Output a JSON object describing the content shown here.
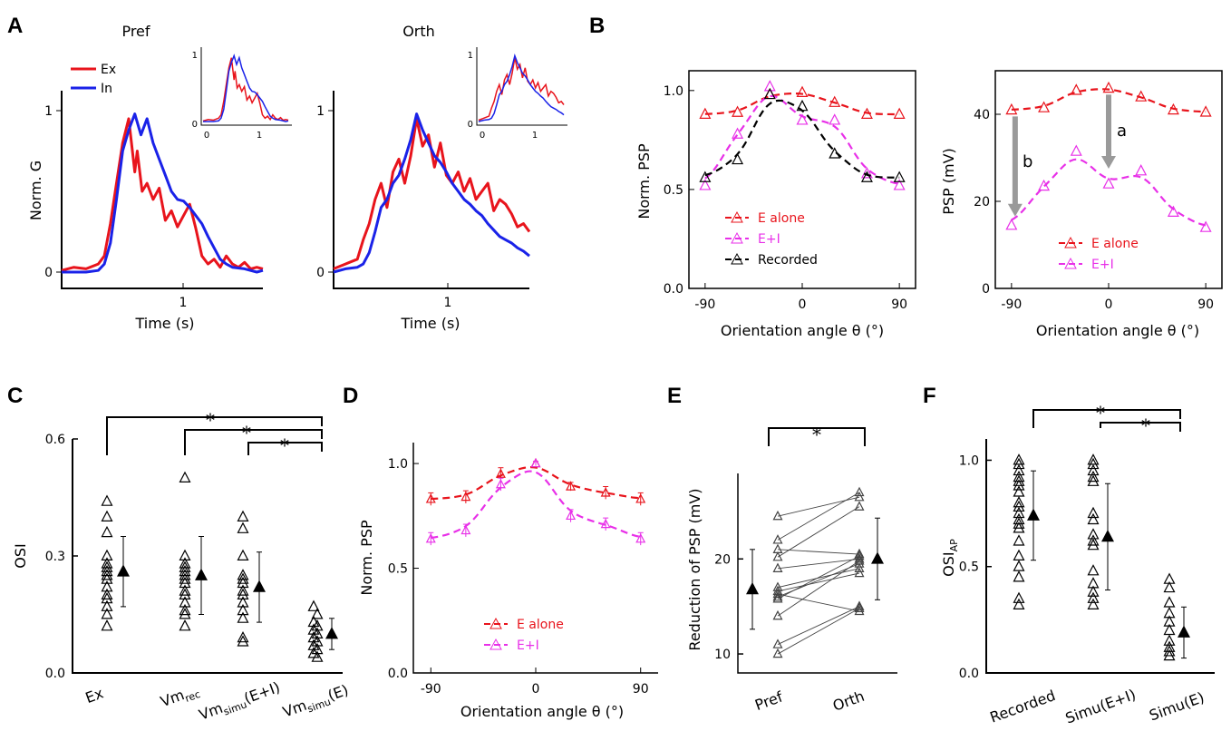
{
  "colors": {
    "ex": "#e8141c",
    "in": "#1a22e8",
    "ealone": "#e8141c",
    "ei": "#e830e8",
    "recorded": "#000000",
    "arrow": "#9a9a9a"
  },
  "panels": {
    "A": "A",
    "B": "B",
    "C": "C",
    "D": "D",
    "E": "E",
    "F": "F"
  },
  "chart_data": [
    {
      "id": "A_pref",
      "type": "line",
      "title": "Pref",
      "xlabel": "Time (s)",
      "ylabel": "Norm. G",
      "xlim": [
        0,
        1.65
      ],
      "ylim": [
        -0.05,
        1.05
      ],
      "xticks": [
        "1"
      ],
      "yticks": [
        "0",
        "1"
      ],
      "legend": [
        "Ex",
        "In"
      ],
      "series": [
        {
          "name": "Ex",
          "x": [
            0,
            0.1,
            0.2,
            0.3,
            0.35,
            0.4,
            0.45,
            0.5,
            0.55,
            0.6,
            0.62,
            0.66,
            0.7,
            0.75,
            0.8,
            0.85,
            0.9,
            0.95,
            1.0,
            1.05,
            1.1,
            1.15,
            1.2,
            1.25,
            1.3,
            1.35,
            1.4,
            1.45,
            1.5,
            1.55,
            1.6,
            1.65
          ],
          "y": [
            0.01,
            0.03,
            0.02,
            0.05,
            0.1,
            0.3,
            0.55,
            0.8,
            0.95,
            0.62,
            0.75,
            0.5,
            0.55,
            0.45,
            0.52,
            0.32,
            0.38,
            0.28,
            0.35,
            0.42,
            0.27,
            0.1,
            0.05,
            0.08,
            0.03,
            0.1,
            0.05,
            0.03,
            0.06,
            0.02,
            0.03,
            0.02
          ]
        },
        {
          "name": "In",
          "x": [
            0,
            0.2,
            0.3,
            0.35,
            0.4,
            0.45,
            0.5,
            0.55,
            0.6,
            0.65,
            0.7,
            0.75,
            0.8,
            0.85,
            0.9,
            0.95,
            1.0,
            1.05,
            1.1,
            1.15,
            1.2,
            1.25,
            1.3,
            1.35,
            1.4,
            1.5,
            1.6,
            1.65
          ],
          "y": [
            0,
            0.0,
            0.01,
            0.05,
            0.18,
            0.45,
            0.75,
            0.88,
            0.98,
            0.85,
            0.95,
            0.8,
            0.7,
            0.6,
            0.5,
            0.45,
            0.44,
            0.4,
            0.35,
            0.3,
            0.22,
            0.15,
            0.08,
            0.05,
            0.03,
            0.02,
            0.0,
            0.01
          ]
        }
      ],
      "inset": {
        "xticks": [
          "0",
          "1"
        ],
        "yticks": [
          "0",
          "1"
        ]
      }
    },
    {
      "id": "A_orth",
      "type": "line",
      "title": "Orth",
      "xlabel": "Time (s)",
      "ylabel": "",
      "xlim": [
        0,
        1.65
      ],
      "ylim": [
        -0.05,
        1.05
      ],
      "xticks": [
        "1"
      ],
      "yticks": [
        "0",
        "1"
      ],
      "series": [
        {
          "name": "Ex",
          "x": [
            0,
            0.1,
            0.2,
            0.25,
            0.3,
            0.35,
            0.4,
            0.45,
            0.5,
            0.55,
            0.6,
            0.65,
            0.7,
            0.75,
            0.8,
            0.85,
            0.9,
            0.95,
            1.0,
            1.05,
            1.1,
            1.15,
            1.2,
            1.25,
            1.3,
            1.35,
            1.4,
            1.45,
            1.5,
            1.55,
            1.6,
            1.65
          ],
          "y": [
            0.02,
            0.05,
            0.08,
            0.2,
            0.3,
            0.45,
            0.55,
            0.4,
            0.62,
            0.7,
            0.55,
            0.72,
            0.95,
            0.78,
            0.85,
            0.65,
            0.8,
            0.6,
            0.55,
            0.62,
            0.5,
            0.58,
            0.45,
            0.5,
            0.55,
            0.38,
            0.45,
            0.42,
            0.36,
            0.28,
            0.3,
            0.25
          ]
        },
        {
          "name": "In",
          "x": [
            0,
            0.1,
            0.2,
            0.25,
            0.3,
            0.35,
            0.4,
            0.45,
            0.5,
            0.55,
            0.6,
            0.65,
            0.7,
            0.75,
            0.8,
            0.85,
            0.9,
            0.95,
            1.0,
            1.05,
            1.1,
            1.15,
            1.2,
            1.25,
            1.3,
            1.35,
            1.4,
            1.45,
            1.5,
            1.55,
            1.6,
            1.65
          ],
          "y": [
            0.0,
            0.02,
            0.03,
            0.05,
            0.12,
            0.25,
            0.4,
            0.45,
            0.55,
            0.6,
            0.7,
            0.82,
            0.98,
            0.88,
            0.8,
            0.72,
            0.68,
            0.62,
            0.55,
            0.5,
            0.45,
            0.42,
            0.38,
            0.35,
            0.3,
            0.26,
            0.22,
            0.2,
            0.18,
            0.15,
            0.13,
            0.1
          ]
        }
      ],
      "inset": {
        "xticks": [
          "0",
          "1"
        ],
        "yticks": [
          "0",
          "1"
        ]
      }
    },
    {
      "id": "B_norm",
      "type": "line",
      "xlabel": "Orientation angle θ (°)",
      "ylabel": "Norm. PSP",
      "xlim": [
        -105,
        105
      ],
      "ylim": [
        0,
        1.1
      ],
      "xticks": [
        "-90",
        "0",
        "90"
      ],
      "yticks": [
        "0.0",
        "0.5",
        "1.0"
      ],
      "legend": [
        "E alone",
        "E+I",
        "Recorded"
      ],
      "series": [
        {
          "name": "E alone",
          "x": [
            -90,
            -60,
            -30,
            0,
            30,
            60,
            90
          ],
          "y": [
            0.88,
            0.89,
            0.98,
            0.99,
            0.94,
            0.88,
            0.88
          ]
        },
        {
          "name": "E+I",
          "x": [
            -90,
            -60,
            -30,
            0,
            30,
            60,
            90
          ],
          "y": [
            0.52,
            0.78,
            1.02,
            0.85,
            0.85,
            0.58,
            0.52
          ]
        },
        {
          "name": "Recorded",
          "x": [
            -90,
            -60,
            -30,
            0,
            30,
            60,
            90
          ],
          "y": [
            0.56,
            0.65,
            0.98,
            0.92,
            0.68,
            0.56,
            0.56
          ]
        }
      ]
    },
    {
      "id": "B_abs",
      "type": "line",
      "xlabel": "Orientation angle θ (°)",
      "ylabel": "PSP (mV)",
      "xlim": [
        -105,
        105
      ],
      "ylim": [
        0,
        50
      ],
      "xticks": [
        "-90",
        "0",
        "90"
      ],
      "yticks": [
        "0",
        "20",
        "40"
      ],
      "legend": [
        "E alone",
        "E+I"
      ],
      "annotations": [
        "a",
        "b"
      ],
      "series": [
        {
          "name": "E alone",
          "x": [
            -90,
            -60,
            -30,
            0,
            30,
            60,
            90
          ],
          "y": [
            41,
            41.5,
            45.5,
            46,
            44,
            41,
            40.5
          ]
        },
        {
          "name": "E+I",
          "x": [
            -90,
            -60,
            -30,
            0,
            30,
            60,
            90
          ],
          "y": [
            14.5,
            23.5,
            31.5,
            24,
            27,
            17.5,
            14
          ]
        }
      ]
    },
    {
      "id": "C",
      "type": "scatter",
      "xlabel": "",
      "ylabel": "OSI",
      "ylim": [
        0,
        0.6
      ],
      "yticks": [
        "0.0",
        "0.3",
        "0.6"
      ],
      "categories": [
        "Ex",
        "Vmrec",
        "Vmsimu(E+I)",
        "Vmsimu(E)"
      ],
      "points": [
        [
          0.44,
          0.4,
          0.36,
          0.3,
          0.28,
          0.27,
          0.26,
          0.25,
          0.24,
          0.22,
          0.2,
          0.19,
          0.17,
          0.15,
          0.12
        ],
        [
          0.5,
          0.3,
          0.28,
          0.27,
          0.26,
          0.25,
          0.24,
          0.23,
          0.21,
          0.2,
          0.18,
          0.16,
          0.15,
          0.12
        ],
        [
          0.4,
          0.37,
          0.3,
          0.25,
          0.24,
          0.23,
          0.21,
          0.2,
          0.18,
          0.16,
          0.14,
          0.09,
          0.08
        ],
        [
          0.17,
          0.15,
          0.13,
          0.12,
          0.11,
          0.1,
          0.09,
          0.08,
          0.07,
          0.06,
          0.05,
          0.04
        ]
      ],
      "mean": [
        0.26,
        0.25,
        0.22,
        0.1
      ],
      "sd": [
        0.09,
        0.1,
        0.09,
        0.04
      ],
      "significance": [
        "*",
        "*",
        "*"
      ]
    },
    {
      "id": "D",
      "type": "line",
      "xlabel": "Orientation angle θ (°)",
      "ylabel": "Norm. PSP",
      "xlim": [
        -105,
        105
      ],
      "ylim": [
        0,
        1.1
      ],
      "xticks": [
        "-90",
        "0",
        "90"
      ],
      "yticks": [
        "0.0",
        "0.5",
        "1.0"
      ],
      "legend": [
        "E alone",
        "E+I"
      ],
      "series": [
        {
          "name": "E alone",
          "x": [
            -90,
            -60,
            -30,
            0,
            30,
            60,
            90
          ],
          "y": [
            0.83,
            0.84,
            0.95,
            1.0,
            0.89,
            0.86,
            0.83
          ],
          "err": [
            0.03,
            0.03,
            0.03,
            0.01,
            0.02,
            0.03,
            0.03
          ]
        },
        {
          "name": "E+I",
          "x": [
            -90,
            -60,
            -30,
            0,
            30,
            60,
            90
          ],
          "y": [
            0.64,
            0.68,
            0.9,
            1.0,
            0.75,
            0.71,
            0.64
          ],
          "err": [
            0.03,
            0.03,
            0.03,
            0.01,
            0.03,
            0.03,
            0.03
          ]
        }
      ]
    },
    {
      "id": "E",
      "type": "scatter",
      "xlabel": "",
      "ylabel": "Reduction of PSP (mV)",
      "ylim": [
        8,
        29
      ],
      "yticks": [
        "10",
        "20"
      ],
      "categories": [
        "Pref",
        "Orth"
      ],
      "pairs": [
        [
          24.5,
          26.5
        ],
        [
          22,
          27
        ],
        [
          21,
          20.5
        ],
        [
          20.2,
          25.5
        ],
        [
          19,
          20
        ],
        [
          17,
          19
        ],
        [
          16.6,
          18.5
        ],
        [
          16.3,
          14.5
        ],
        [
          16,
          19.5
        ],
        [
          15.8,
          20.3
        ],
        [
          14,
          19.8
        ],
        [
          11,
          15
        ],
        [
          10,
          14.8
        ]
      ],
      "mean": [
        16.8,
        20
      ],
      "sd": [
        4.2,
        4.3
      ],
      "significance": [
        "*"
      ]
    },
    {
      "id": "F",
      "type": "scatter",
      "xlabel": "",
      "ylabel": "OSIAP",
      "ylim": [
        0,
        1.1
      ],
      "yticks": [
        "0.0",
        "0.5",
        "1.0"
      ],
      "categories": [
        "Recorded",
        "Simu(E+I)",
        "Simu(E)"
      ],
      "points": [
        [
          1.0,
          0.98,
          0.95,
          0.92,
          0.9,
          0.88,
          0.85,
          0.8,
          0.78,
          0.75,
          0.72,
          0.7,
          0.68,
          0.62,
          0.55,
          0.5,
          0.45,
          0.35,
          0.32
        ],
        [
          1.0,
          0.98,
          0.95,
          0.92,
          0.9,
          0.75,
          0.72,
          0.65,
          0.62,
          0.6,
          0.48,
          0.42,
          0.38,
          0.35,
          0.32
        ],
        [
          0.44,
          0.4,
          0.33,
          0.28,
          0.24,
          0.2,
          0.15,
          0.12,
          0.1,
          0.08
        ]
      ],
      "mean": [
        0.74,
        0.64,
        0.19
      ],
      "sd": [
        0.21,
        0.25,
        0.12
      ],
      "significance": [
        "*",
        "*"
      ]
    }
  ]
}
